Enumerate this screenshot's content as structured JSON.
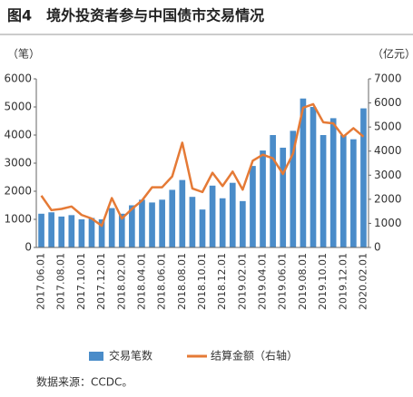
{
  "chart_data": {
    "type": "bar_line",
    "title": "图4　境外投资者参与中国债市交易情况",
    "y_label": "（笔）",
    "y2_label": "（亿元）",
    "source": "数据来源：CCDC。",
    "categories": [
      "2017.06.01",
      null,
      "2017.08.01",
      null,
      "2017.10.01",
      null,
      "2017.12.01",
      null,
      "2018.02.01",
      null,
      "2018.04.01",
      null,
      "2018.06.01",
      null,
      "2018.08.01",
      null,
      "2018.10.01",
      null,
      "2018.12.01",
      null,
      "2019.02.01",
      null,
      "2019.04.01",
      null,
      "2019.06.01",
      null,
      "2019.08.01",
      null,
      "2019.10.01",
      null,
      "2019.12.01",
      null,
      "2020.02.01"
    ],
    "series": [
      {
        "name": "交易笔数",
        "color": "#4a8cc9",
        "kind": "bar",
        "values": [
          1200,
          1250,
          1100,
          1150,
          1000,
          1050,
          1000,
          1400,
          1200,
          1500,
          1700,
          1600,
          1700,
          2050,
          2400,
          1800,
          1350,
          2200,
          1750,
          2300,
          1650,
          2900,
          3450,
          4000,
          3550,
          4150,
          5300,
          5000,
          4000,
          4600,
          4000,
          3850,
          4950
        ]
      },
      {
        "name": "结算金额（右轴）",
        "color": "#e57a36",
        "kind": "line",
        "axis": "y2",
        "values": [
          2150,
          1550,
          1600,
          1700,
          1350,
          1200,
          900,
          2050,
          1200,
          1600,
          1950,
          2500,
          2500,
          2950,
          4350,
          2450,
          2300,
          3100,
          2550,
          3150,
          2400,
          3600,
          3850,
          3700,
          3050,
          3900,
          5800,
          5950,
          5200,
          5150,
          4600,
          4950,
          4600
        ]
      }
    ],
    "ylim": [
      0,
      6000
    ],
    "yticks": [
      0,
      1000,
      2000,
      3000,
      4000,
      5000,
      6000
    ],
    "y2lim": [
      0,
      7000
    ],
    "y2ticks": [
      0,
      1000,
      2000,
      3000,
      4000,
      5000,
      6000,
      7000
    ]
  }
}
